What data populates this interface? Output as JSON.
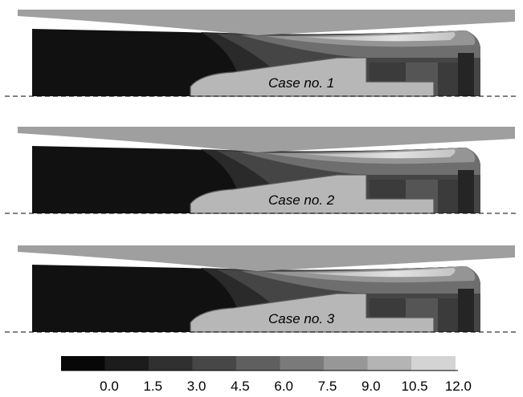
{
  "panels": [
    {
      "label": "Case no. 1"
    },
    {
      "label": "Case no. 2"
    },
    {
      "label": "Case no. 3"
    }
  ],
  "colorbar": {
    "colors": [
      "#070707",
      "#1c1c1c",
      "#303030",
      "#474747",
      "#5f5f5f",
      "#7a7a7a",
      "#979797",
      "#b4b4b4",
      "#d4d4d4"
    ],
    "tick_labels": [
      "0.0",
      "1.5",
      "3.0",
      "4.5",
      "6.0",
      "7.5",
      "9.0",
      "10.5",
      "12.0"
    ]
  },
  "colors": {
    "wall": "#9f9f9f",
    "nozzle_body": "#b7b7b7",
    "outline": "#5a5a5a",
    "background": "#ffffff"
  }
}
